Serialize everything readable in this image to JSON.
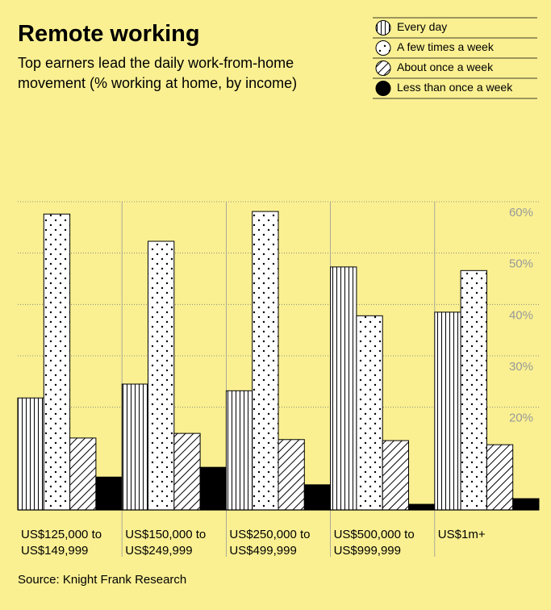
{
  "chart_data": {
    "type": "bar",
    "title": "Remote working",
    "subtitle": "Top earners lead the daily work-from-home movement (% working at home, by income)",
    "source": "Source: Knight Frank Research",
    "categories": [
      "US$125,000 to US$149,999",
      "US$150,000 to US$249,999",
      "US$250,000 to US$499,999",
      "US$500,000 to US$999,999",
      "US$1m+"
    ],
    "series": [
      {
        "name": "Every day",
        "pattern": "vertical",
        "color": "#000000",
        "values": [
          21.8,
          24.5,
          23.2,
          47.3,
          38.5
        ]
      },
      {
        "name": "A few times a week",
        "pattern": "dots",
        "color": "#000000",
        "values": [
          57.6,
          52.3,
          58.1,
          37.8,
          46.6
        ]
      },
      {
        "name": "About once a week",
        "pattern": "diagonal",
        "color": "#000000",
        "values": [
          14.0,
          14.9,
          13.7,
          13.5,
          12.7
        ]
      },
      {
        "name": "Less than once a week",
        "pattern": "solid",
        "color": "#000000",
        "values": [
          6.4,
          8.3,
          4.9,
          1.1,
          2.2
        ]
      }
    ],
    "ylim": [
      0,
      60
    ],
    "yticks": [
      {
        "value": 20,
        "label": "20%"
      },
      {
        "value": 30,
        "label": "30%"
      },
      {
        "value": 40,
        "label": "40%"
      },
      {
        "value": 50,
        "label": "50%"
      },
      {
        "value": 60,
        "label": "60%"
      }
    ],
    "grid": true
  }
}
